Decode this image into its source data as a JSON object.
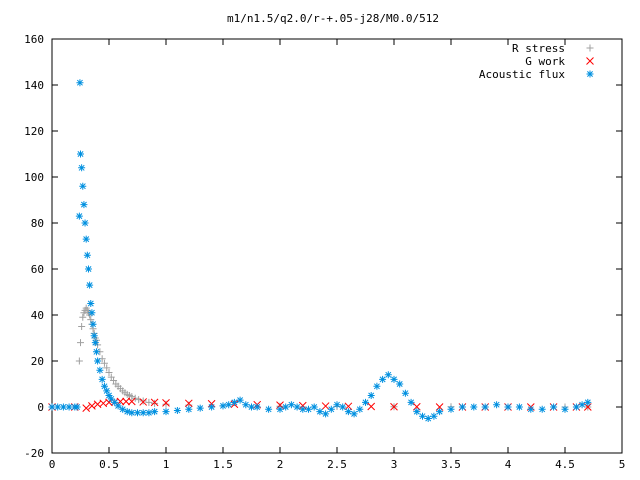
{
  "chart_data": {
    "type": "scatter",
    "title": "m1/n1.5/q2.0/r-+.05-j28/M0.0/512",
    "xlabel": "",
    "ylabel": "",
    "xlim": [
      0,
      5
    ],
    "ylim": [
      -20,
      160
    ],
    "x_ticks": [
      "0",
      "0.5",
      "1",
      "1.5",
      "2",
      "2.5",
      "3",
      "3.5",
      "4",
      "4.5",
      "5"
    ],
    "y_ticks": [
      "-20",
      "0",
      "20",
      "40",
      "60",
      "80",
      "100",
      "120",
      "140",
      "160"
    ],
    "grid": false,
    "legend_position": "top-right",
    "series": [
      {
        "name": "R stress",
        "marker": "+",
        "color": "#a0a0a0",
        "x": [
          0.24,
          0.25,
          0.26,
          0.27,
          0.28,
          0.29,
          0.3,
          0.31,
          0.32,
          0.33,
          0.34,
          0.35,
          0.36,
          0.37,
          0.38,
          0.39,
          0.4,
          0.42,
          0.44,
          0.46,
          0.48,
          0.5,
          0.52,
          0.54,
          0.56,
          0.58,
          0.6,
          0.62,
          0.64,
          0.66,
          0.68,
          0.7,
          0.73,
          0.76,
          0.8,
          0.85,
          0.9,
          1.0,
          1.2,
          1.5,
          2.0,
          2.5,
          3.0,
          3.5,
          4.0,
          4.5,
          4.7
        ],
        "y": [
          20,
          28,
          35,
          39,
          41,
          42,
          43,
          42,
          41,
          40,
          38,
          36,
          34,
          32,
          30,
          29,
          27,
          24,
          21,
          19,
          17,
          15,
          13,
          11.5,
          10,
          9,
          8,
          7,
          6.2,
          5.5,
          5,
          4.5,
          3.8,
          3.2,
          2.6,
          2,
          1.6,
          1.2,
          0.8,
          0.5,
          0.3,
          0.2,
          0.1,
          0.1,
          0,
          0,
          0
        ]
      },
      {
        "name": "G work",
        "marker": "x",
        "color": "#ff0000",
        "x": [
          0,
          0.2,
          0.3,
          0.35,
          0.4,
          0.45,
          0.5,
          0.55,
          0.6,
          0.65,
          0.7,
          0.8,
          0.9,
          1.0,
          1.2,
          1.4,
          1.6,
          1.8,
          2.0,
          2.2,
          2.4,
          2.6,
          2.8,
          3.0,
          3.2,
          3.4,
          3.6,
          3.8,
          4.0,
          4.2,
          4.4,
          4.6,
          4.7
        ],
        "y": [
          0,
          0,
          -0.5,
          0.5,
          1.2,
          1.6,
          2,
          2.2,
          2.4,
          2.4,
          2.4,
          2.2,
          2,
          1.8,
          1.6,
          1.4,
          1.2,
          1,
          0.8,
          0.6,
          0.4,
          0.3,
          0.2,
          0.1,
          0.1,
          0,
          0,
          0,
          0,
          0,
          0,
          0,
          0
        ]
      },
      {
        "name": "Acoustic flux",
        "marker": "*",
        "color": "#0090e0",
        "x": [
          0,
          0.05,
          0.1,
          0.15,
          0.2,
          0.22,
          0.24,
          0.245,
          0.25,
          0.26,
          0.27,
          0.28,
          0.29,
          0.3,
          0.31,
          0.32,
          0.33,
          0.34,
          0.35,
          0.36,
          0.37,
          0.38,
          0.39,
          0.4,
          0.42,
          0.44,
          0.46,
          0.48,
          0.5,
          0.52,
          0.55,
          0.58,
          0.62,
          0.66,
          0.7,
          0.75,
          0.8,
          0.85,
          0.9,
          1.0,
          1.1,
          1.2,
          1.3,
          1.4,
          1.5,
          1.55,
          1.6,
          1.65,
          1.7,
          1.75,
          1.8,
          1.9,
          2.0,
          2.05,
          2.1,
          2.15,
          2.2,
          2.25,
          2.3,
          2.35,
          2.4,
          2.45,
          2.5,
          2.55,
          2.6,
          2.65,
          2.7,
          2.75,
          2.8,
          2.85,
          2.9,
          2.95,
          3.0,
          3.05,
          3.1,
          3.15,
          3.2,
          3.25,
          3.3,
          3.35,
          3.4,
          3.5,
          3.6,
          3.7,
          3.8,
          3.9,
          4.0,
          4.1,
          4.2,
          4.3,
          4.4,
          4.5,
          4.6,
          4.65,
          4.7
        ],
        "y": [
          0,
          0,
          0,
          0,
          0,
          0,
          83,
          141,
          110,
          104,
          96,
          88,
          80,
          73,
          66,
          60,
          53,
          45,
          41,
          36,
          31,
          28,
          24,
          20,
          16,
          12,
          9,
          7,
          5,
          3.5,
          2,
          0.5,
          -1,
          -2,
          -2.5,
          -2.5,
          -2.5,
          -2.5,
          -2,
          -2,
          -1.5,
          -1,
          -0.5,
          0,
          0.5,
          1,
          2,
          3,
          1,
          0,
          0,
          -1,
          -1,
          0,
          1,
          0,
          -1,
          -1,
          0,
          -2,
          -3,
          -1,
          1,
          0,
          -2,
          -3,
          -1,
          2,
          5,
          9,
          12,
          14,
          12,
          10,
          6,
          2,
          -2,
          -4,
          -5,
          -4,
          -2,
          -1,
          0,
          0,
          0,
          1,
          0,
          0,
          -1,
          -1,
          0,
          -1,
          0,
          1,
          2
        ]
      }
    ]
  }
}
